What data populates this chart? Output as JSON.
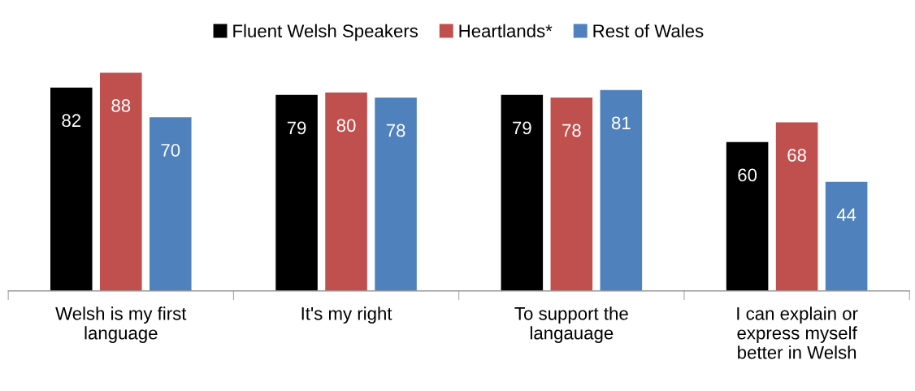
{
  "chart_data": {
    "type": "bar",
    "categories": [
      "Welsh is my first\nlanguage",
      "It's my right",
      "To support the\nlangauage",
      "I can explain or\nexpress myself\nbetter in Welsh"
    ],
    "series": [
      {
        "name": "Fluent Welsh Speakers",
        "color": "#000000",
        "values": [
          82,
          79,
          79,
          60
        ]
      },
      {
        "name": "Heartlands*",
        "color": "#c0504d",
        "values": [
          88,
          80,
          78,
          68
        ]
      },
      {
        "name": "Rest of Wales",
        "color": "#4f81bd",
        "values": [
          70,
          78,
          81,
          44
        ]
      }
    ],
    "data_labels": true,
    "legend": "top",
    "grid": false
  }
}
